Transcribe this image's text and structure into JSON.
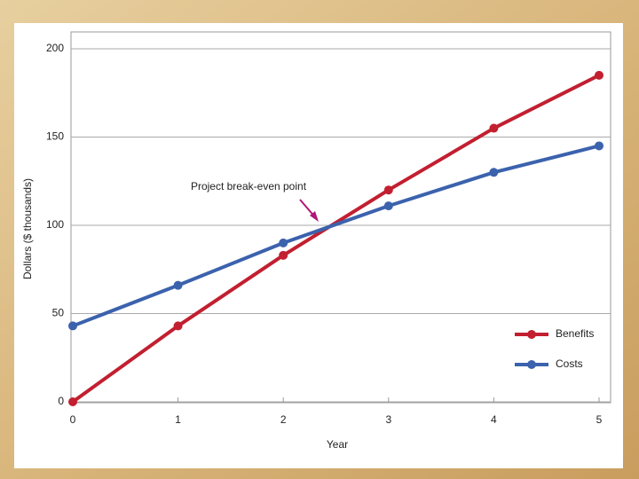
{
  "chart_data": {
    "type": "line",
    "annotation": "Project break-even point",
    "x_label": "Year",
    "y_label": "Dollars ($ thousands)",
    "x": [
      0,
      1,
      2,
      3,
      4,
      5
    ],
    "series": [
      {
        "name": "Benefits",
        "color": "#c21f30",
        "values": [
          0,
          43,
          83,
          120,
          155,
          185
        ]
      },
      {
        "name": "Costs",
        "color": "#3b62ad",
        "values": [
          43,
          66,
          90,
          111,
          130,
          145
        ]
      }
    ],
    "xlim": [
      0,
      5
    ],
    "xticks": [
      0,
      1,
      2,
      3,
      4,
      5
    ],
    "ylim": [
      0,
      200
    ],
    "yticks": [
      0,
      50,
      100,
      150,
      200
    ],
    "grid": true,
    "legend": "lower right"
  }
}
